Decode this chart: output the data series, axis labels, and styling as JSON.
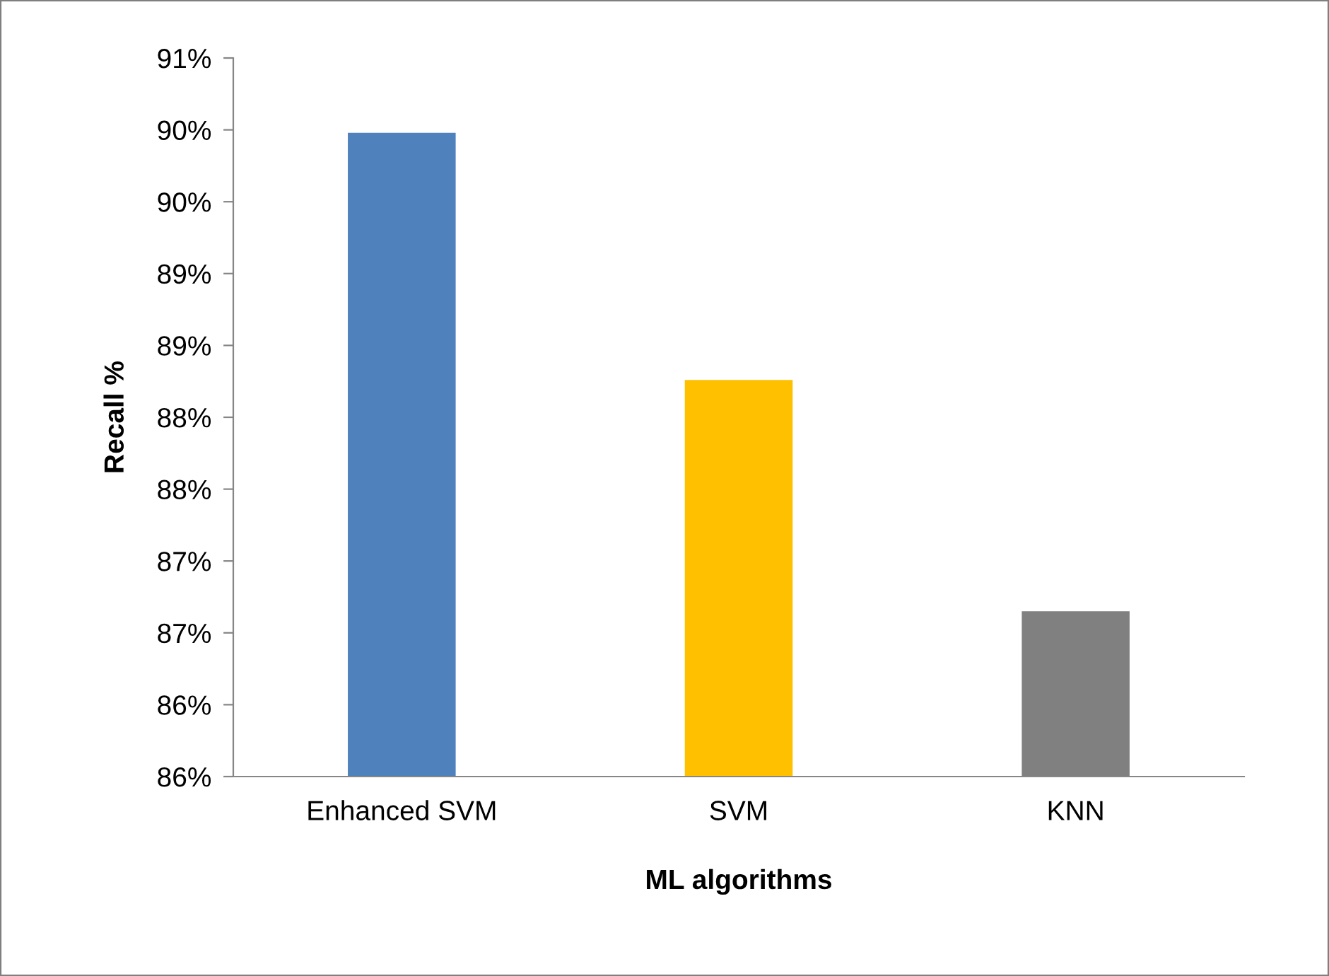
{
  "chart_data": {
    "type": "bar",
    "xlabel": "ML algorithms",
    "ylabel": "Recall %",
    "categories": [
      "Enhanced SVM",
      "SVM",
      "KNN"
    ],
    "values": [
      89.98,
      88.26,
      86.65
    ],
    "colors": [
      "#4f81bd",
      "#ffc000",
      "#808080"
    ],
    "ylim": [
      85.5,
      90.5
    ],
    "yticks": [
      {
        "value": 85.5,
        "label": "86%"
      },
      {
        "value": 86,
        "label": "86%"
      },
      {
        "value": 86.5,
        "label": "87%"
      },
      {
        "value": 87,
        "label": "87%"
      },
      {
        "value": 87.5,
        "label": "88%"
      },
      {
        "value": 88,
        "label": "88%"
      },
      {
        "value": 88.5,
        "label": "89%"
      },
      {
        "value": 89,
        "label": "89%"
      },
      {
        "value": 89.5,
        "label": "90%"
      },
      {
        "value": 90,
        "label": "90%"
      },
      {
        "value": 90.5,
        "label": "91%"
      }
    ],
    "grid": false,
    "legend": false
  }
}
